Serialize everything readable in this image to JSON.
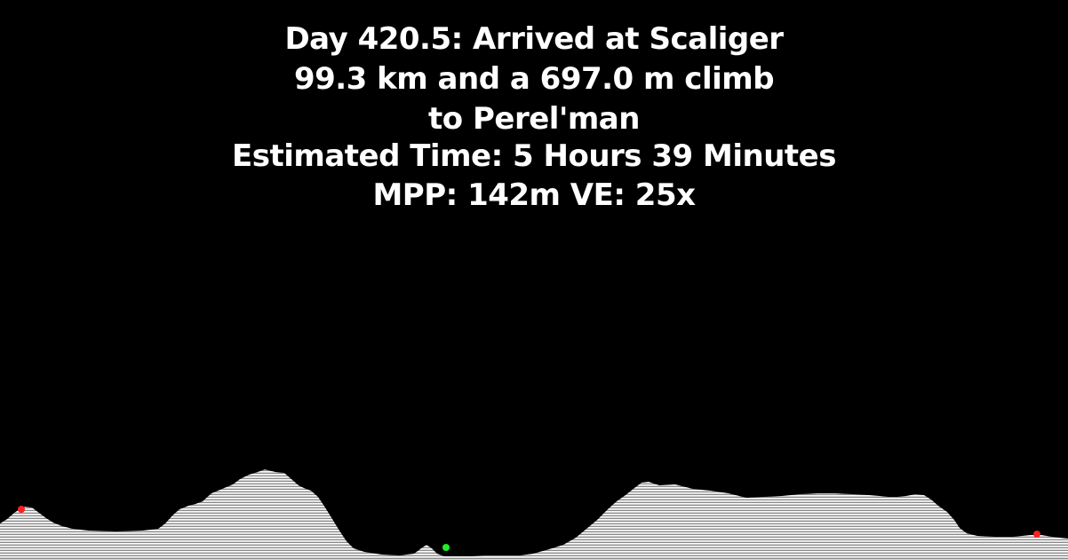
{
  "header": {
    "title": "Day 420.5: Arrived at Scaliger",
    "segment": "99.3 km and a 697.0 m climb",
    "destination": "to Perel'man",
    "estimated_time": "Estimated Time: 5 Hours 39 Minutes",
    "scale": "MPP: 142m VE: 25x"
  },
  "profile": {
    "fill_color": "#d9d9d9",
    "hatch_color": "#ffffff",
    "background": "#000000",
    "distance_km": 99.3,
    "climb_m": 697.0,
    "current_position_fraction": 0.417,
    "markers": [
      {
        "type": "waypoint",
        "color": "#ff2020",
        "fraction": 0.02
      },
      {
        "type": "current-position",
        "color": "#22ee22",
        "fraction": 0.417
      },
      {
        "type": "waypoint",
        "color": "#ff2020",
        "fraction": 0.971
      }
    ]
  }
}
